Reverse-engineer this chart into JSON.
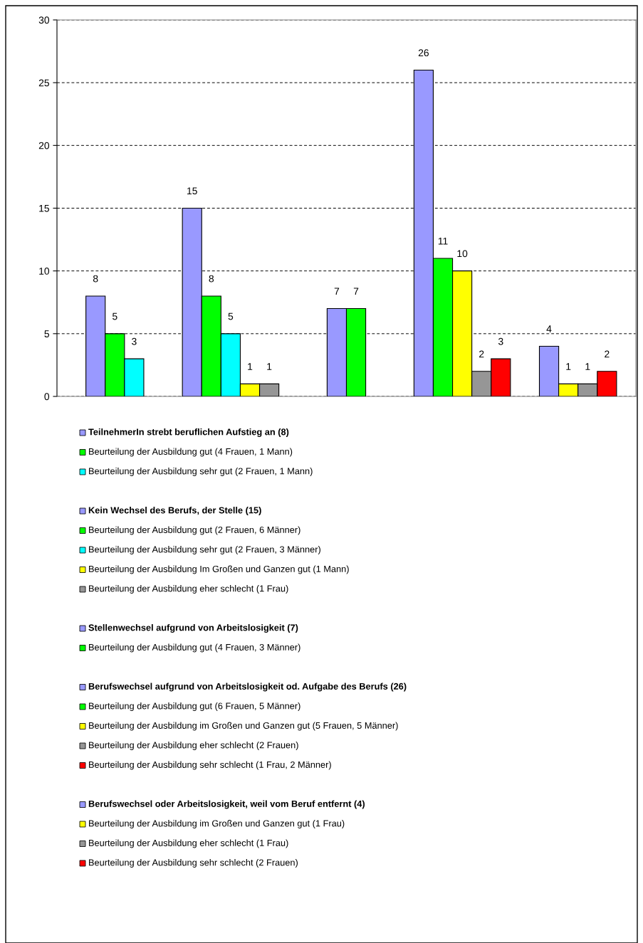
{
  "chart_data": {
    "type": "bar",
    "categories": [
      null,
      null,
      null,
      null,
      null
    ],
    "ylim": [
      0,
      30
    ],
    "yticks": [
      0,
      5,
      10,
      15,
      20,
      25,
      30
    ],
    "grid": "y",
    "legend": "bottom",
    "data_labels": true,
    "tick_labels": "y",
    "series": [
      {
        "name": "TeilnehmerIn strebt beruflichen Aufstieg an (8)",
        "color": "#9999ff",
        "values": [
          8,
          null,
          null,
          null,
          null
        ]
      },
      {
        "name": "Beurteilung der Ausbildung gut (4 Frauen, 1 Mann)",
        "color": "#00ff00",
        "values": [
          5,
          null,
          null,
          null,
          null
        ]
      },
      {
        "name": "Beurteilung der Ausbildung sehr gut (2 Frauen, 1 Mann)",
        "color": "#00ffff",
        "values": [
          3,
          null,
          null,
          null,
          null
        ]
      },
      {
        "name": "Kein Wechsel des Berufs, der Stelle (15)",
        "color": "#9999ff",
        "values": [
          null,
          15,
          null,
          null,
          null
        ]
      },
      {
        "name": "Beurteilung der Ausbildung gut (2 Frauen, 6 Männer)",
        "color": "#00ff00",
        "values": [
          null,
          8,
          null,
          null,
          null
        ]
      },
      {
        "name": "Beurteilung der Ausbildung sehr gut (2 Frauen, 3 Männer)",
        "color": "#00ffff",
        "values": [
          null,
          5,
          null,
          null,
          null
        ]
      },
      {
        "name": "Beurteilung der Ausbildung Im Großen und Ganzen gut (1 Mann)",
        "color": "#ffff00",
        "values": [
          null,
          1,
          null,
          null,
          null
        ]
      },
      {
        "name": "Beurteilung der Ausbildung eher schlecht (1 Frau)",
        "color": "#969696",
        "values": [
          null,
          1,
          null,
          null,
          null
        ]
      },
      {
        "name": "Stellenwechsel aufgrund von Arbeitslosigkeit (7)",
        "color": "#9999ff",
        "values": [
          null,
          null,
          7,
          null,
          null
        ]
      },
      {
        "name": "Beurteilung der Ausbildung gut (4 Frauen, 3 Männer)",
        "color": "#00ff00",
        "values": [
          null,
          null,
          7,
          null,
          null
        ]
      },
      {
        "name": "Berufswechsel aufgrund von Arbeitslosigkeit od. Aufgabe des Berufs (26)",
        "color": "#9999ff",
        "values": [
          null,
          null,
          null,
          26,
          null
        ]
      },
      {
        "name": "Beurteilung der Ausbildung gut (6 Frauen, 5 Männer)",
        "color": "#00ff00",
        "values": [
          null,
          null,
          null,
          11,
          null
        ]
      },
      {
        "name": "Beurteilung der Ausbildung im Großen und Ganzen gut (5 Frauen, 5 Männer)",
        "color": "#ffff00",
        "values": [
          null,
          null,
          null,
          10,
          null
        ]
      },
      {
        "name": "Beurteilung der Ausbildung eher schlecht (2 Frauen)",
        "color": "#969696",
        "values": [
          null,
          null,
          null,
          2,
          null
        ]
      },
      {
        "name": "Beurteilung der Ausbildung sehr schlecht (1 Frau, 2 Männer)",
        "color": "#ff0000",
        "values": [
          null,
          null,
          null,
          3,
          null
        ]
      },
      {
        "name": "Berufswechsel oder Arbeitslosigkeit, weil vom Beruf entfernt (4)",
        "color": "#9999ff",
        "values": [
          null,
          null,
          null,
          null,
          4
        ]
      },
      {
        "name": "Beurteilung der Ausbildung im Großen und Ganzen gut (1 Frau)",
        "color": "#ffff00",
        "values": [
          null,
          null,
          null,
          null,
          1
        ]
      },
      {
        "name": "Beurteilung der Ausbildung eher schlecht (1 Frau)",
        "color": "#969696",
        "values": [
          null,
          null,
          null,
          null,
          1
        ]
      },
      {
        "name": "Beurteilung der Ausbildung sehr schlecht (2 Frauen)",
        "color": "#ff0000",
        "values": [
          null,
          null,
          null,
          null,
          2
        ]
      }
    ]
  }
}
